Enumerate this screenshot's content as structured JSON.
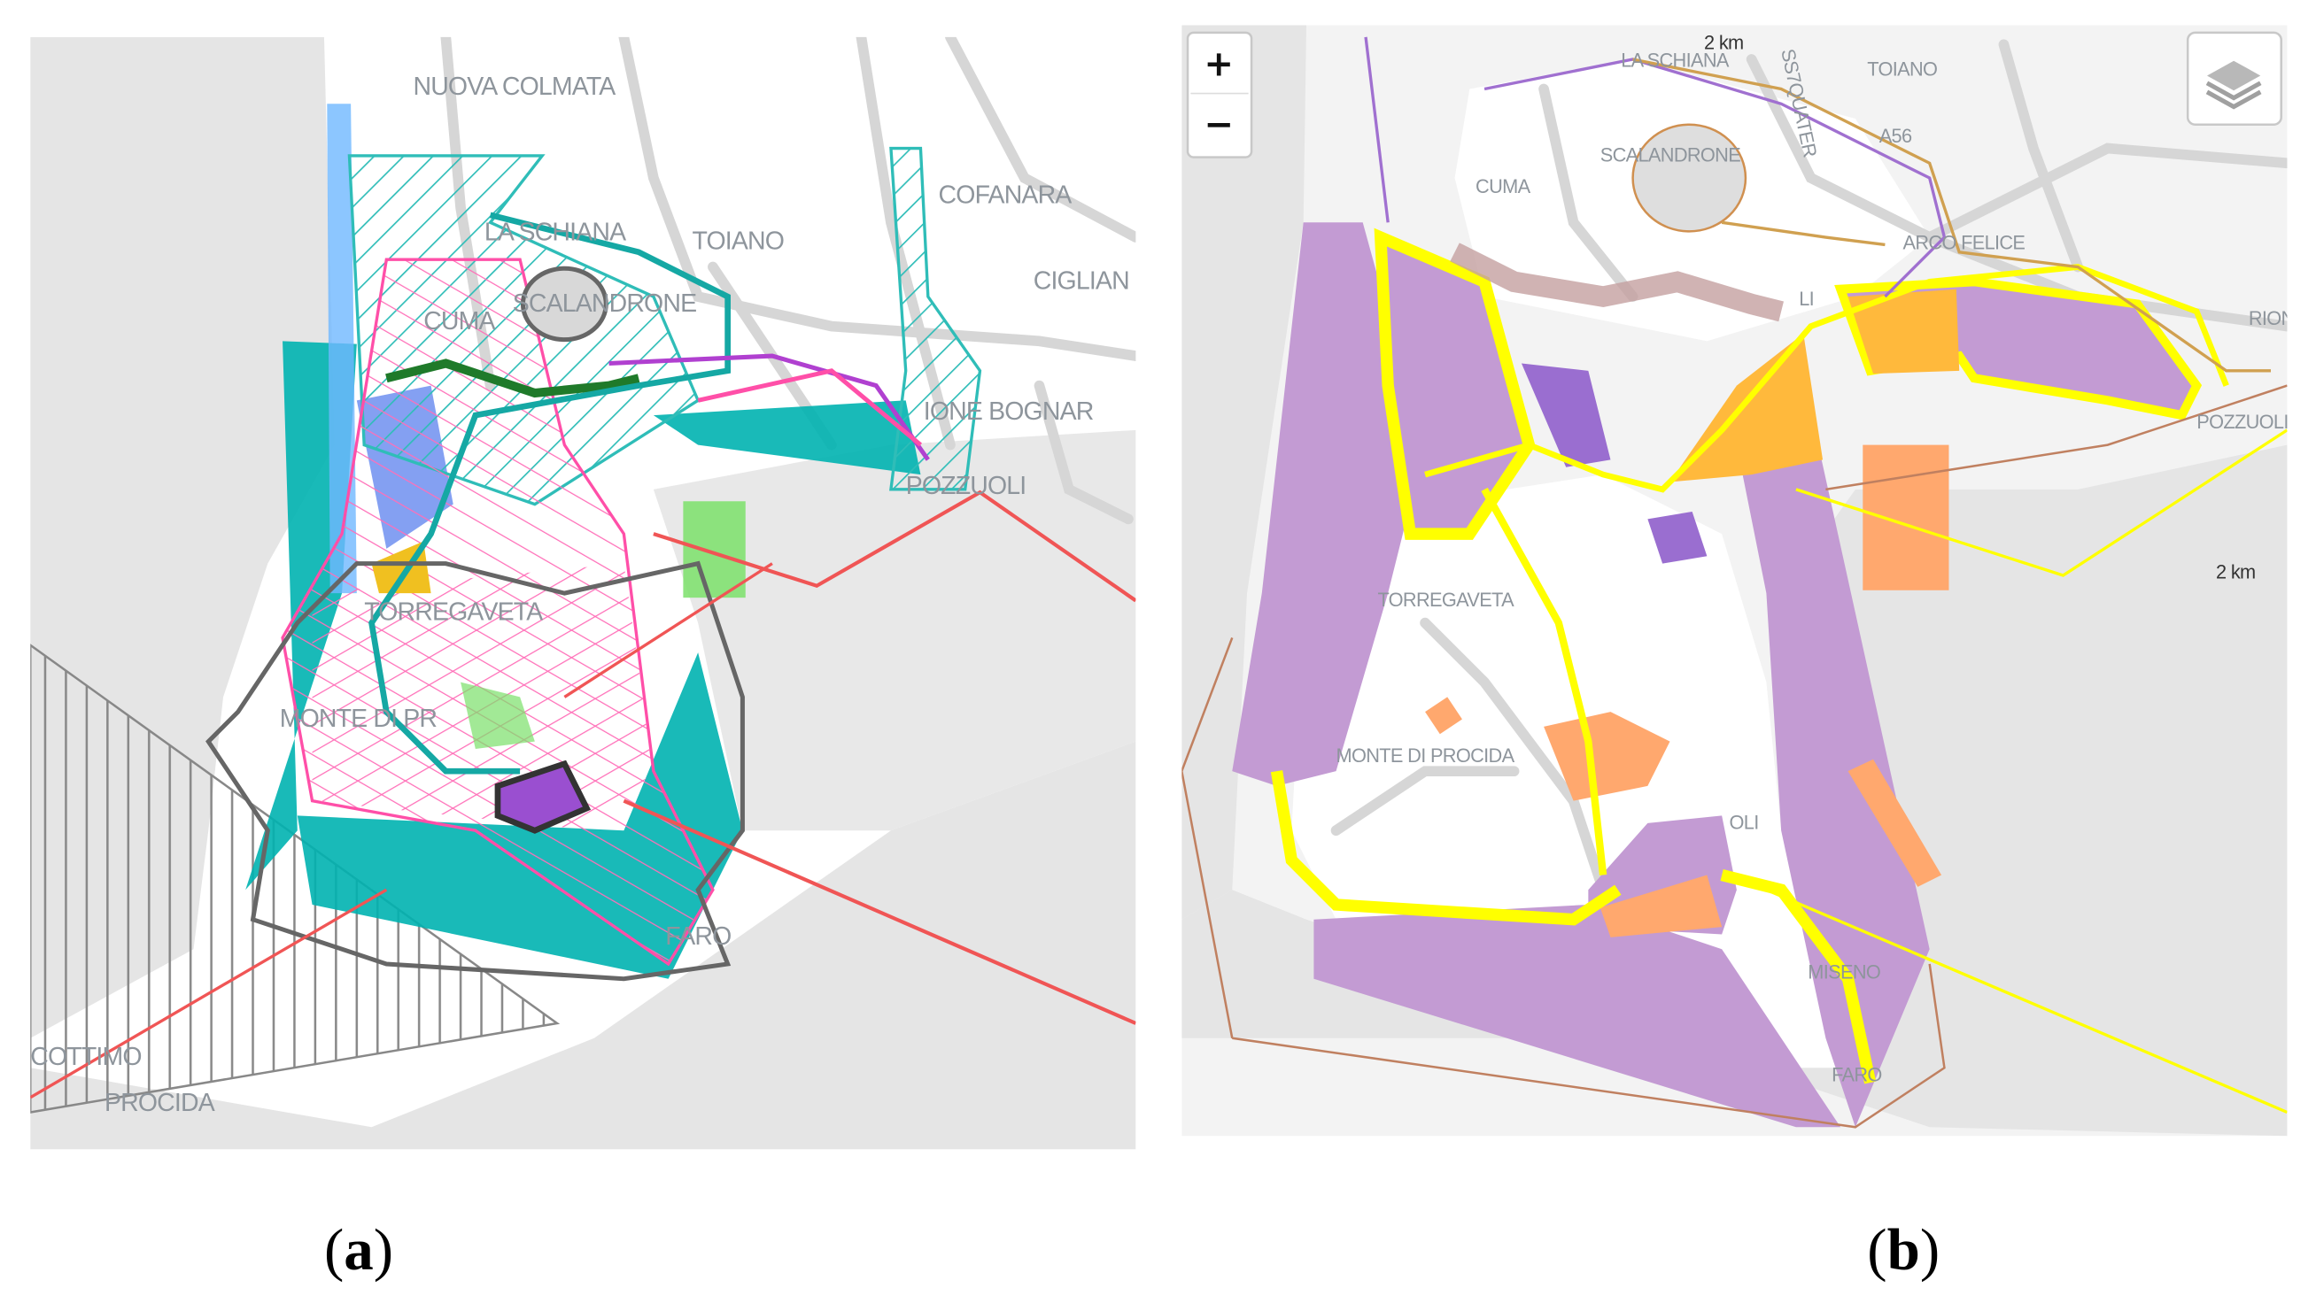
{
  "panels": [
    {
      "caption": "a",
      "labels": [
        "NUOVA COLMATA",
        "LA SCHIANA",
        "TOIANO",
        "COFANARA",
        "CIGLIAN",
        "CUMA",
        "SCALANDRONE",
        "IONE BOGNAR",
        "POZZUOLI",
        "TORREGAVETA",
        "MONTE DI PR",
        "FARO",
        "COTTIMO",
        "PROCIDA"
      ],
      "colors": {
        "teal": "#00b3b0",
        "pink": "#ff4fa8",
        "purple": "#9a4fd0",
        "red": "#f05555",
        "grey_line": "#666666",
        "green": "#7be06a",
        "blue": "#6f9ff0",
        "sea": "#e5e5e5"
      }
    },
    {
      "caption": "b",
      "labels": [
        "LA SCHIANA",
        "SS7QUATER",
        "TOIANO",
        "CUMA",
        "SCALANDRONE",
        "A56",
        "ARCO FELICE",
        "RIONE",
        "POZZUOLI",
        "TORREGAVETA",
        "MONTE DI PROCIDA",
        "MISENO",
        "FARO",
        "LI",
        "OLI"
      ],
      "scale_top": "2 km",
      "scale_right": "2 km",
      "controls": {
        "zoom_in": "+",
        "zoom_out": "−",
        "layers_icon": "layers-icon"
      },
      "colors": {
        "lilac": "#c39bd3",
        "yellow": "#ffff00",
        "orange": "#ffb93c",
        "salmon": "#ffa86e",
        "brown_line": "#c08060",
        "sea": "#e5e5e5"
      }
    }
  ]
}
